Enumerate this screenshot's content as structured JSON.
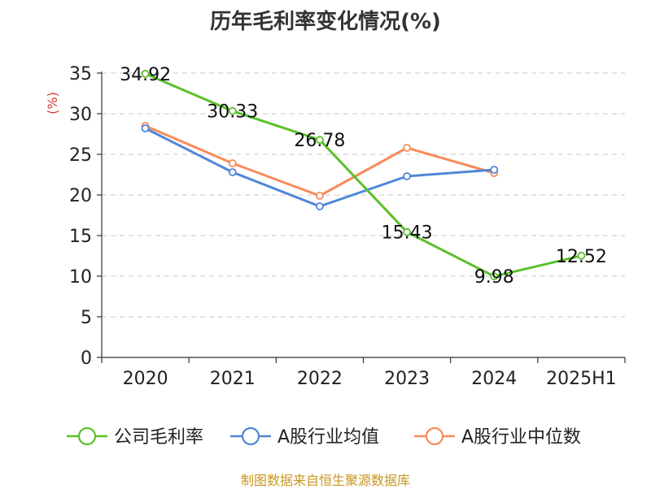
{
  "chart_data": {
    "type": "line",
    "title": "历年毛利率变化情况(%)",
    "ylabel": "(%)",
    "xlabel": "",
    "categories": [
      "2020",
      "2021",
      "2022",
      "2023",
      "2024",
      "2025H1"
    ],
    "ylim": [
      0,
      35
    ],
    "yticks": [
      0,
      5,
      10,
      15,
      20,
      25,
      30,
      35
    ],
    "grid": "horizontal dashed",
    "legend_position": "bottom",
    "series": [
      {
        "name": "公司毛利率",
        "color": "#5ac12a",
        "values": [
          34.92,
          30.33,
          26.78,
          15.43,
          9.98,
          12.52
        ],
        "data_labels": [
          "34.92",
          "30.33",
          "26.78",
          "15.43",
          "9.98",
          "12.52"
        ]
      },
      {
        "name": "A股行业均值",
        "color": "#4f86d9",
        "values": [
          28.2,
          22.8,
          18.6,
          22.3,
          23.1,
          null
        ]
      },
      {
        "name": "A股行业中位数",
        "color": "#f78b5a",
        "values": [
          28.5,
          23.9,
          19.9,
          25.8,
          22.7,
          null
        ]
      }
    ]
  },
  "source": "制图数据来自恒生聚源数据库"
}
